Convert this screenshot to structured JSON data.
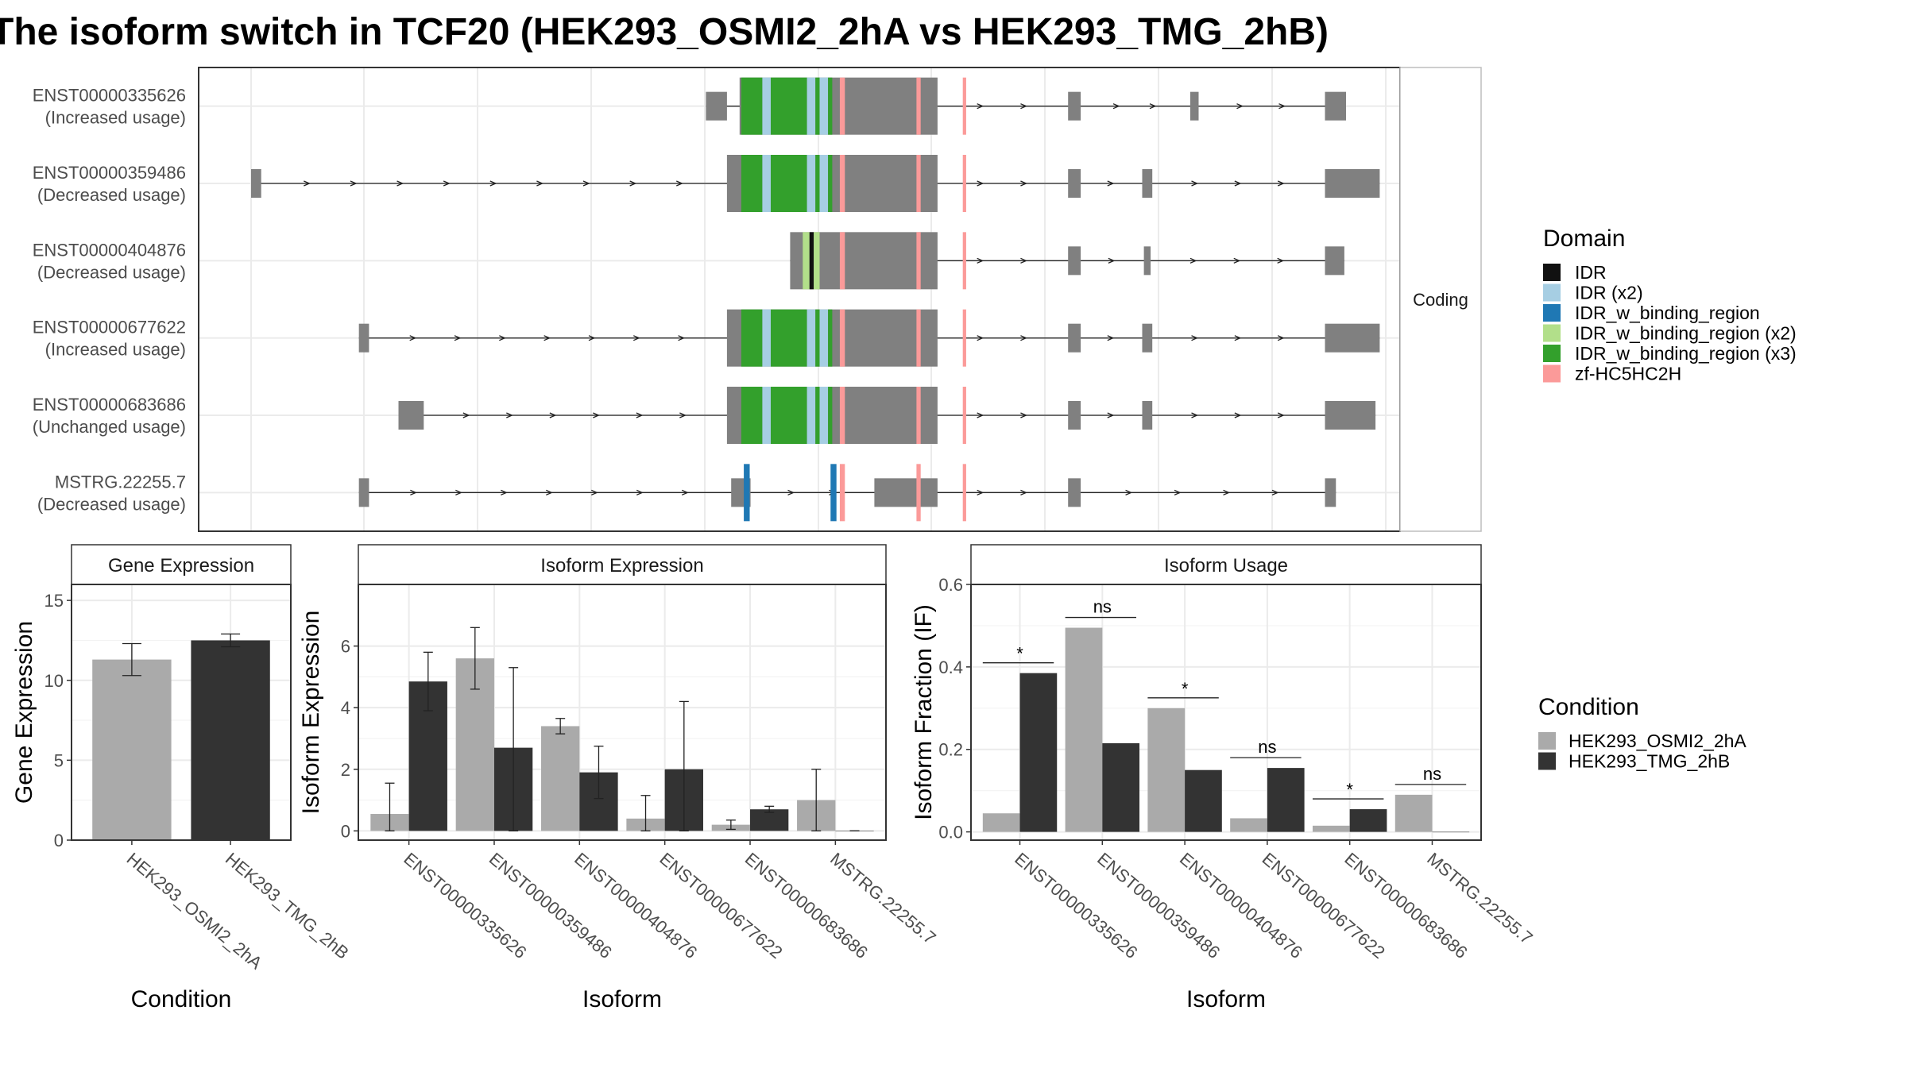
{
  "title": "The isoform switch in TCF20 (HEK293_OSMI2_2hA vs HEK293_TMG_2hB)",
  "colors": {
    "cond_a": "#aaaaaa",
    "cond_b": "#333333",
    "exon_noncoding": "#808080",
    "IDR": "#111111",
    "IDR (x2)": "#a6cee3",
    "IDR_w_binding_region": "#1f78b4",
    "IDR_w_binding_region (x2)": "#b2df8a",
    "IDR_w_binding_region (x3)": "#33a02c",
    "zf-HC5HC2H": "#fb9a99"
  },
  "structure_panel": {
    "facet_label": "Coding",
    "isoforms": [
      {
        "id": "ENST00000335626",
        "usage": "(Increased usage)",
        "exons": [
          [
            0.54,
            0.565
          ],
          [
            0.58,
            0.815
          ],
          [
            0.97,
            0.985
          ],
          [
            1.115,
            1.125
          ],
          [
            1.275,
            1.3
          ]
        ],
        "domains": [
          [
            "IDR_w_binding_region (x3)",
            0.582,
            0.607
          ],
          [
            "IDR (x2)",
            0.607,
            0.617
          ],
          [
            "IDR_w_binding_region (x3)",
            0.617,
            0.66
          ],
          [
            "IDR (x2)",
            0.66,
            0.67
          ],
          [
            "IDR_w_binding_region (x3)",
            0.67,
            0.675
          ],
          [
            "IDR (x2)",
            0.675,
            0.685
          ],
          [
            "IDR_w_binding_region (x3)",
            0.685,
            0.69
          ],
          [
            "zf-HC5HC2H",
            0.699,
            0.705
          ],
          [
            "zf-HC5HC2H",
            0.79,
            0.795
          ],
          [
            "zf-HC5HC2H",
            0.845,
            0.849
          ]
        ]
      },
      {
        "id": "ENST00000359486",
        "usage": "(Decreased usage)",
        "exons": [
          [
            0.0,
            0.012
          ],
          [
            0.565,
            0.815
          ],
          [
            0.97,
            0.985
          ],
          [
            1.058,
            1.07
          ],
          [
            1.275,
            1.34
          ]
        ],
        "domains": [
          [
            "IDR_w_binding_region (x3)",
            0.582,
            0.607
          ],
          [
            "IDR (x2)",
            0.607,
            0.617
          ],
          [
            "IDR_w_binding_region (x3)",
            0.617,
            0.66
          ],
          [
            "IDR (x2)",
            0.66,
            0.67
          ],
          [
            "IDR_w_binding_region (x3)",
            0.67,
            0.675
          ],
          [
            "IDR (x2)",
            0.675,
            0.685
          ],
          [
            "IDR_w_binding_region (x3)",
            0.685,
            0.69
          ],
          [
            "zf-HC5HC2H",
            0.699,
            0.705
          ],
          [
            "zf-HC5HC2H",
            0.79,
            0.795
          ],
          [
            "zf-HC5HC2H",
            0.845,
            0.849
          ]
        ]
      },
      {
        "id": "ENST00000404876",
        "usage": "(Decreased usage)",
        "exons": [
          [
            0.64,
            0.815
          ],
          [
            0.97,
            0.985
          ],
          [
            1.06,
            1.068
          ],
          [
            1.275,
            1.298
          ]
        ],
        "domains": [
          [
            "IDR_w_binding_region (x2)",
            0.655,
            0.663
          ],
          [
            "IDR",
            0.663,
            0.668
          ],
          [
            "IDR_w_binding_region (x2)",
            0.668,
            0.675
          ],
          [
            "zf-HC5HC2H",
            0.699,
            0.705
          ],
          [
            "zf-HC5HC2H",
            0.79,
            0.795
          ],
          [
            "zf-HC5HC2H",
            0.845,
            0.849
          ]
        ]
      },
      {
        "id": "ENST00000677622",
        "usage": "(Increased usage)",
        "exons": [
          [
            0.128,
            0.14
          ],
          [
            0.565,
            0.815
          ],
          [
            0.97,
            0.985
          ],
          [
            1.058,
            1.07
          ],
          [
            1.275,
            1.34
          ]
        ],
        "domains": [
          [
            "IDR_w_binding_region (x3)",
            0.582,
            0.607
          ],
          [
            "IDR (x2)",
            0.607,
            0.617
          ],
          [
            "IDR_w_binding_region (x3)",
            0.617,
            0.66
          ],
          [
            "IDR (x2)",
            0.66,
            0.67
          ],
          [
            "IDR_w_binding_region (x3)",
            0.67,
            0.675
          ],
          [
            "IDR (x2)",
            0.675,
            0.685
          ],
          [
            "IDR_w_binding_region (x3)",
            0.685,
            0.69
          ],
          [
            "zf-HC5HC2H",
            0.699,
            0.705
          ],
          [
            "zf-HC5HC2H",
            0.79,
            0.795
          ],
          [
            "zf-HC5HC2H",
            0.845,
            0.849
          ]
        ]
      },
      {
        "id": "ENST00000683686",
        "usage": "(Unchanged usage)",
        "exons": [
          [
            0.175,
            0.205
          ],
          [
            0.565,
            0.815
          ],
          [
            0.97,
            0.985
          ],
          [
            1.058,
            1.07
          ],
          [
            1.275,
            1.335
          ]
        ],
        "domains": [
          [
            "IDR_w_binding_region (x3)",
            0.582,
            0.607
          ],
          [
            "IDR (x2)",
            0.607,
            0.617
          ],
          [
            "IDR_w_binding_region (x3)",
            0.617,
            0.66
          ],
          [
            "IDR (x2)",
            0.66,
            0.67
          ],
          [
            "IDR_w_binding_region (x3)",
            0.67,
            0.675
          ],
          [
            "IDR (x2)",
            0.675,
            0.685
          ],
          [
            "IDR_w_binding_region (x3)",
            0.685,
            0.69
          ],
          [
            "zf-HC5HC2H",
            0.699,
            0.705
          ],
          [
            "zf-HC5HC2H",
            0.79,
            0.795
          ],
          [
            "zf-HC5HC2H",
            0.845,
            0.849
          ]
        ]
      },
      {
        "id": "MSTRG.22255.7",
        "usage": "(Decreased usage)",
        "exons": [
          [
            0.128,
            0.14
          ],
          [
            0.57,
            0.593
          ],
          [
            0.74,
            0.815
          ],
          [
            0.97,
            0.985
          ],
          [
            1.275,
            1.288
          ]
        ],
        "domains": [
          [
            "IDR_w_binding_region",
            0.585,
            0.592
          ],
          [
            "IDR_w_binding_region",
            0.688,
            0.695
          ],
          [
            "zf-HC5HC2H",
            0.699,
            0.705
          ],
          [
            "zf-HC5HC2H",
            0.79,
            0.795
          ],
          [
            "zf-HC5HC2H",
            0.845,
            0.849
          ]
        ]
      }
    ]
  },
  "legend_domain": {
    "title": "Domain",
    "items": [
      "IDR",
      "IDR (x2)",
      "IDR_w_binding_region",
      "IDR_w_binding_region (x2)",
      "IDR_w_binding_region (x3)",
      "zf-HC5HC2H"
    ]
  },
  "legend_condition": {
    "title": "Condition",
    "items": [
      "HEK293_OSMI2_2hA",
      "HEK293_TMG_2hB"
    ]
  },
  "chart_data": [
    {
      "type": "bar",
      "title": "Gene Expression",
      "xlabel": "Condition",
      "ylabel": "Gene Expression",
      "ylim": [
        0,
        16
      ],
      "yticks": [
        0,
        5,
        10,
        15
      ],
      "categories": [
        "HEK293_OSMI2_2hA",
        "HEK293_TMG_2hB"
      ],
      "values": [
        11.3,
        12.5
      ],
      "errors": [
        [
          10.3,
          12.3
        ],
        [
          12.1,
          12.9
        ]
      ]
    },
    {
      "type": "bar",
      "title": "Isoform Expression",
      "xlabel": "Isoform",
      "ylabel": "Isoform Expression",
      "ylim": [
        -0.3,
        8.0
      ],
      "yticks": [
        0,
        2,
        4,
        6
      ],
      "categories": [
        "ENST00000335626",
        "ENST00000359486",
        "ENST00000404876",
        "ENST00000677622",
        "ENST00000683686",
        "MSTRG.22255.7"
      ],
      "series": [
        {
          "name": "HEK293_OSMI2_2hA",
          "values": [
            0.55,
            5.6,
            3.4,
            0.4,
            0.2,
            1.0
          ],
          "errors": [
            [
              0.0,
              1.55
            ],
            [
              4.6,
              6.6
            ],
            [
              3.15,
              3.65
            ],
            [
              0.0,
              1.15
            ],
            [
              0.05,
              0.35
            ],
            [
              0.0,
              2.0
            ]
          ]
        },
        {
          "name": "HEK293_TMG_2hB",
          "values": [
            4.85,
            2.7,
            1.9,
            2.0,
            0.7,
            0.0
          ],
          "errors": [
            [
              3.9,
              5.8
            ],
            [
              0.0,
              5.3
            ],
            [
              1.05,
              2.75
            ],
            [
              0.0,
              4.2
            ],
            [
              0.6,
              0.8
            ],
            [
              0.0,
              0.0
            ]
          ]
        }
      ]
    },
    {
      "type": "bar",
      "title": "Isoform Usage",
      "xlabel": "Isoform",
      "ylabel": "Isoform Fraction (IF)",
      "ylim": [
        -0.02,
        0.6
      ],
      "yticks": [
        "0.0",
        "0.2",
        "0.4",
        "0.6"
      ],
      "categories": [
        "ENST00000335626",
        "ENST00000359486",
        "ENST00000404876",
        "ENST00000677622",
        "ENST00000683686",
        "MSTRG.22255.7"
      ],
      "series": [
        {
          "name": "HEK293_OSMI2_2hA",
          "values": [
            0.045,
            0.495,
            0.3,
            0.033,
            0.015,
            0.09
          ]
        },
        {
          "name": "HEK293_TMG_2hB",
          "values": [
            0.385,
            0.215,
            0.15,
            0.155,
            0.055,
            0.0
          ]
        }
      ],
      "significance": [
        {
          "label": "*",
          "y": 0.41
        },
        {
          "label": "ns",
          "y": 0.52
        },
        {
          "label": "*",
          "y": 0.325
        },
        {
          "label": "ns",
          "y": 0.18
        },
        {
          "label": "*",
          "y": 0.08
        },
        {
          "label": "ns",
          "y": 0.115
        }
      ]
    }
  ]
}
